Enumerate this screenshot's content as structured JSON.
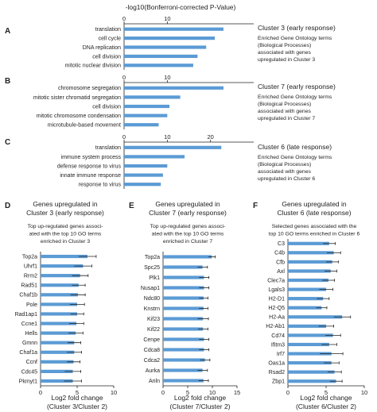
{
  "global_title": "-log10(Bonferroni-corrected P-Value)",
  "colors": {
    "bar": "#5b9bd5",
    "axis": "#222222"
  },
  "chart_data": [
    {
      "panel": "A",
      "type": "bar",
      "orientation": "horizontal",
      "categories": [
        "translation",
        "cell cycle",
        "DNA replication",
        "cell division",
        "mitotic nuclear division"
      ],
      "values": [
        23,
        21,
        19,
        17,
        16
      ],
      "xlim": [
        0,
        30
      ],
      "xticks": [
        0,
        10
      ],
      "title": "Cluster 3 (early response)",
      "description": "Enriched Gene Ontology terms (Biological Processes) associated with genes upregulated in Cluster 3"
    },
    {
      "panel": "B",
      "type": "bar",
      "orientation": "horizontal",
      "categories": [
        "chromosome segregation",
        "mitotic sister chromatid segregation",
        "cell division",
        "mitotic chromosome condensation",
        "microtubule-based movement"
      ],
      "values": [
        23,
        13,
        10.5,
        10,
        8
      ],
      "xlim": [
        0,
        30
      ],
      "xticks": [
        0,
        10
      ],
      "title": "Cluster 7 (early response)",
      "description": "Enriched Gene Ontology terms (Biological Processes) associated with genes upregulated in Cluster 7"
    },
    {
      "panel": "C",
      "type": "bar",
      "orientation": "horizontal",
      "categories": [
        "translation",
        "immune system process",
        "defense response to virus",
        "innate immune response",
        "response to virus"
      ],
      "values": [
        22.5,
        14,
        10,
        9,
        8.5
      ],
      "xlim": [
        0,
        30
      ],
      "xticks": [
        0,
        10,
        20
      ],
      "title": "Cluster 6 (late response)",
      "description": "Enriched Gene Ontology terms (Biological Processes) associated with genes upregulated in Cluster 6"
    },
    {
      "panel": "D",
      "type": "bar",
      "orientation": "horizontal",
      "title": "Genes upregulated in Cluster 3 (early response)",
      "subtitle": "Top up-regulated genes associated with the top 10 GO terms enriched in Cluster 3",
      "categories": [
        "Top2a",
        "Uhrf1",
        "Rrm2",
        "Rad51",
        "Chaf1b",
        "Pole",
        "Rad1ap1",
        "Ccne1",
        "Hells",
        "Gmnn",
        "Chaf1a",
        "Ccnf",
        "Cdc45",
        "Pkmyt1"
      ],
      "values": [
        6.4,
        5.8,
        5.4,
        5.2,
        5.1,
        5.0,
        5.0,
        4.9,
        4.8,
        4.6,
        4.6,
        4.5,
        4.4,
        4.4
      ],
      "errors": [
        1.2,
        1.2,
        1.1,
        0.9,
        1.0,
        1.0,
        0.9,
        1.0,
        1.0,
        0.9,
        1.0,
        0.9,
        1.1,
        1.2
      ],
      "xlim": [
        0,
        10
      ],
      "xticks": [
        0,
        5,
        10
      ],
      "xlabel": "Log2 fold change (Cluster 3/Cluster 2)"
    },
    {
      "panel": "E",
      "type": "bar",
      "orientation": "horizontal",
      "title": "Genes upregulated in Cluster 7 (early response)",
      "subtitle": "Top up-regulated genes associated with the top 10 GO terms enriched in Cluster 7",
      "categories": [
        "Top2a",
        "Spc25",
        "Plk1",
        "Nusap1",
        "Ndc80",
        "Knstrn",
        "Kif23",
        "Kif22",
        "Cenpe",
        "Cdca8",
        "Cdca2",
        "Aurka",
        "Anln"
      ],
      "values": [
        9.9,
        8.0,
        8.3,
        8.3,
        8.2,
        8.2,
        8.1,
        8.1,
        8.3,
        8.3,
        8.5,
        8.0,
        8.2
      ],
      "errors": [
        0.7,
        1.0,
        1.0,
        1.0,
        0.9,
        0.9,
        1.1,
        1.0,
        1.0,
        1.0,
        1.0,
        1.0,
        1.0
      ],
      "xlim": [
        0,
        15
      ],
      "xticks": [
        0,
        5,
        10,
        15
      ],
      "xlabel": "Log2 fold change (Cluster 7/Cluster 2)"
    },
    {
      "panel": "F",
      "type": "bar",
      "orientation": "horizontal",
      "title": "Genes upregulated in Cluster 6 (late response)",
      "subtitle": "Selected genes associated with the top 10 GO terms enriched in Cluster 6",
      "categories": [
        "C3",
        "C4b",
        "Cfb",
        "Axl",
        "Clec7a",
        "Lgals3",
        "H2-D1",
        "H2-Q5",
        "H2-Aa",
        "H2-Ab1",
        "Cd74",
        "Ifitm3",
        "Irf7",
        "Oas1a",
        "Rsad2",
        "Zbp1"
      ],
      "values": [
        5.4,
        6.0,
        5.8,
        5.6,
        5.3,
        5.0,
        4.6,
        4.4,
        7.1,
        5.0,
        5.9,
        5.4,
        5.7,
        5.7,
        6.1,
        6.3
      ],
      "errors": [
        0.8,
        0.9,
        0.8,
        0.8,
        0.8,
        0.9,
        0.8,
        0.7,
        1.1,
        1.0,
        1.0,
        1.0,
        1.5,
        1.0,
        0.9,
        0.8
      ],
      "xlim": [
        0,
        10
      ],
      "xticks": [
        0,
        5,
        10
      ],
      "xlabel": "Log2 fold change (Cluster 6/Cluster 2)"
    }
  ]
}
